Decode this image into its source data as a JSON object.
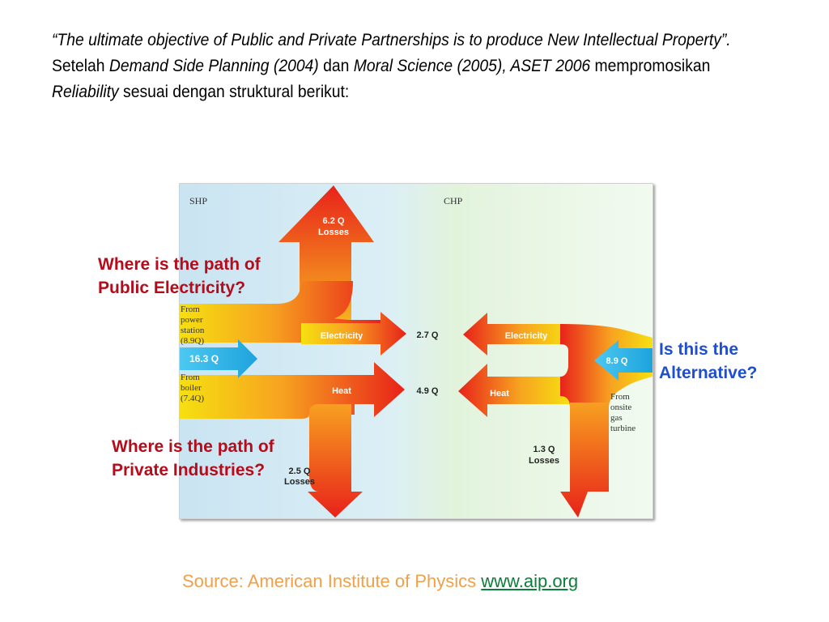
{
  "intro": {
    "quote": "“The ultimate objective of Public and Private Partnerships is to produce New Intellectual Property”.",
    "t1": " Setelah ",
    "demand": "Demand Side Planning (2004)",
    "t2": " dan ",
    "moral": "Moral Science (2005), ASET 2006",
    "t3": " mempromosikan ",
    "reliability": "Reliability",
    "t4": " sesuai dengan struktural berikut:"
  },
  "diagram": {
    "shp": "SHP",
    "chp": "CHP",
    "losses_top_value": "6.2 Q",
    "losses_top_label": "Losses",
    "from_power": [
      "From",
      "power",
      "station",
      "(8.9Q)"
    ],
    "input_shp": "16.3 Q",
    "from_boiler": [
      "From",
      "boiler",
      "(7.4Q)"
    ],
    "electricity": "Electricity",
    "heat": "Heat",
    "elec_value": "2.7 Q",
    "heat_value": "4.9 Q",
    "losses_left_value": "2.5 Q",
    "losses_left_label": "Losses",
    "input_chp": "8.9 Q",
    "from_onsite": [
      "From",
      "onsite",
      "gas",
      "turbine"
    ],
    "losses_right_value": "1.3 Q",
    "losses_right_label": "Losses"
  },
  "questions": {
    "public": [
      "Where is the path of",
      "Public Electricity?"
    ],
    "alternative": [
      "Is this the",
      "Alternative?"
    ],
    "private": [
      "Where is the path of",
      "Private Industries?"
    ]
  },
  "source": {
    "text": "Source: American Institute of Physics ",
    "link": "www.aip.org"
  },
  "colors": {
    "question_red": "#b50b1a",
    "question_blue": "#1f4fd1",
    "source_orange": "#f0a048",
    "link_green": "#0e7d3a",
    "flow_red": "#e8221a",
    "flow_yellow": "#f6e010",
    "input_blue": "#1db0e6"
  }
}
